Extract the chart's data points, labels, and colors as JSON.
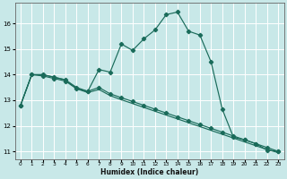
{
  "title": "",
  "xlabel": "Humidex (Indice chaleur)",
  "bg_color": "#c8e8e8",
  "grid_color": "#ffffff",
  "line_color": "#1a6b5a",
  "xlim": [
    -0.5,
    23.5
  ],
  "ylim": [
    10.7,
    16.8
  ],
  "yticks": [
    11,
    12,
    13,
    14,
    15,
    16
  ],
  "xticks": [
    0,
    1,
    2,
    3,
    4,
    5,
    6,
    7,
    8,
    9,
    10,
    11,
    12,
    13,
    14,
    15,
    16,
    17,
    18,
    19,
    20,
    21,
    22,
    23
  ],
  "line1_x": [
    0,
    1,
    2,
    3,
    4,
    5,
    6,
    7,
    8,
    9,
    10,
    11,
    12,
    13,
    14,
    15,
    16,
    17,
    18,
    19,
    20,
    21,
    22,
    23
  ],
  "line1_y": [
    12.8,
    14.0,
    13.95,
    13.85,
    13.75,
    13.45,
    13.35,
    14.2,
    14.1,
    15.2,
    14.95,
    15.4,
    15.75,
    16.35,
    16.45,
    15.7,
    15.55,
    14.5,
    12.65,
    11.55,
    11.45,
    11.3,
    11.05,
    11.0
  ],
  "line2_x": [
    0,
    1,
    2,
    3,
    4,
    5,
    6,
    7,
    8,
    9,
    10,
    11,
    12,
    13,
    14,
    15,
    16,
    17,
    18,
    19,
    20,
    21,
    22,
    23
  ],
  "line2_y": [
    12.8,
    14.0,
    14.0,
    13.9,
    13.8,
    13.5,
    13.35,
    13.5,
    13.25,
    13.1,
    12.95,
    12.8,
    12.65,
    12.5,
    12.35,
    12.2,
    12.05,
    11.9,
    11.75,
    11.6,
    11.45,
    11.3,
    11.15,
    11.0
  ],
  "line3_x": [
    0,
    1,
    2,
    3,
    4,
    5,
    6,
    7,
    8,
    9,
    10,
    11,
    12,
    13,
    14,
    15,
    16,
    17,
    18,
    19,
    20,
    21,
    22,
    23
  ],
  "line3_y": [
    12.8,
    14.0,
    14.0,
    13.9,
    13.8,
    13.45,
    13.3,
    13.42,
    13.18,
    13.02,
    12.87,
    12.72,
    12.57,
    12.42,
    12.27,
    12.12,
    11.97,
    11.82,
    11.67,
    11.52,
    11.37,
    11.22,
    11.07,
    10.95
  ]
}
